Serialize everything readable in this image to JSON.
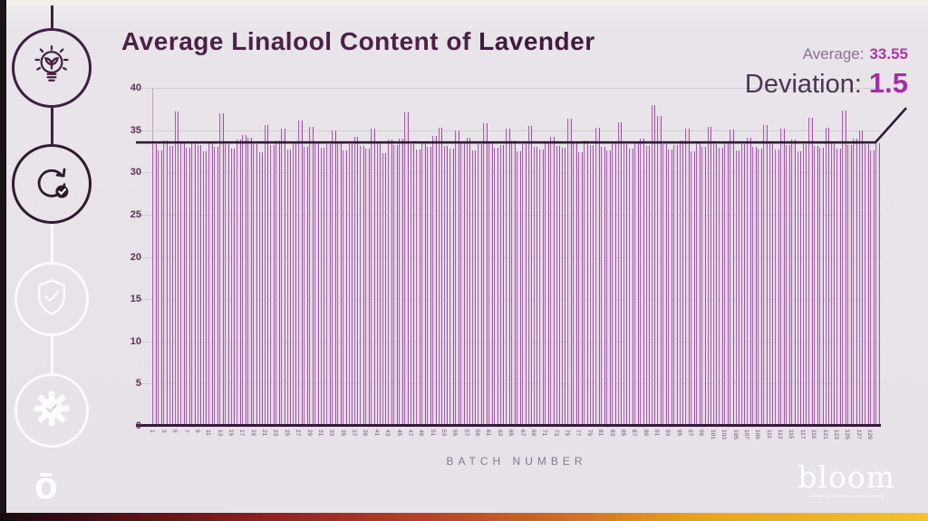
{
  "slide": {
    "title_regular": "Average Linalool Content of ",
    "title_bold": "Lavender",
    "average_label": "Average:",
    "average_value": "33.55",
    "deviation_label": "Deviation:",
    "deviation_value": "1.5"
  },
  "sidebar": {
    "icons": [
      "lightbulb-plant",
      "refresh-check",
      "shield-check",
      "gear-check"
    ],
    "logo_mark": "ō"
  },
  "footer": {
    "brand": "bloom"
  },
  "colors": {
    "background": "#e8e4ea",
    "title": "#4c2145",
    "accent_magenta": "#a32ea3",
    "bar_fill": "#ecd2ec",
    "bar_edge": "#a066a6",
    "average_line": "#2f1b33",
    "axis_dark": "#34193a",
    "bottom_strip": [
      "#140b0e",
      "#8f1f1f",
      "#cf6a22",
      "#f2c12d"
    ]
  },
  "chart_data": {
    "type": "bar",
    "title": "Average Linalool Content of Lavender",
    "xlabel": "BATCH NUMBER",
    "ylabel": "",
    "ylim": [
      0,
      40
    ],
    "yticks": [
      0,
      5,
      10,
      15,
      20,
      25,
      30,
      35,
      40
    ],
    "grid": "horizontal-faint",
    "average": 33.55,
    "deviation": 1.5,
    "x_tick_labels": [
      "1",
      "3",
      "5",
      "7",
      "9",
      "11",
      "13",
      "15",
      "17",
      "19",
      "21",
      "23",
      "25",
      "27",
      "29",
      "31",
      "33",
      "35",
      "37",
      "39",
      "41",
      "43",
      "45",
      "47",
      "49",
      "51",
      "53",
      "55",
      "57",
      "59",
      "61",
      "63",
      "65",
      "67",
      "69",
      "71",
      "73",
      "75",
      "77",
      "79",
      "81",
      "83",
      "85",
      "87",
      "89",
      "91",
      "93",
      "95",
      "97",
      "99",
      "101",
      "103",
      "105",
      "107",
      "109",
      "111",
      "113",
      "115",
      "117",
      "119",
      "121",
      "123",
      "125",
      "127",
      "129"
    ],
    "values": [
      33.4,
      32.6,
      33.8,
      33.1,
      37.2,
      33.5,
      32.9,
      33.7,
      33.2,
      32.5,
      33.6,
      33.0,
      37.0,
      33.4,
      32.8,
      33.9,
      34.4,
      34.1,
      33.3,
      32.4,
      35.6,
      33.2,
      33.8,
      35.2,
      32.7,
      33.5,
      36.1,
      33.0,
      35.4,
      33.6,
      32.9,
      33.3,
      35.0,
      33.7,
      32.6,
      33.4,
      34.2,
      33.1,
      32.8,
      35.2,
      33.5,
      32.3,
      33.9,
      33.2,
      34.0,
      37.1,
      33.4,
      32.7,
      33.6,
      33.0,
      34.3,
      35.3,
      33.1,
      32.8,
      35.0,
      33.5,
      34.1,
      32.6,
      33.3,
      35.8,
      33.7,
      32.9,
      33.2,
      35.2,
      33.8,
      32.5,
      33.4,
      35.5,
      33.0,
      32.7,
      33.6,
      34.2,
      33.1,
      32.9,
      36.4,
      33.5,
      32.4,
      33.8,
      33.2,
      35.3,
      33.0,
      32.6,
      33.7,
      35.9,
      33.3,
      32.8,
      33.5,
      34.0,
      33.1,
      38.0,
      36.7,
      33.4,
      32.7,
      33.2,
      33.8,
      35.2,
      32.5,
      33.6,
      33.0,
      35.4,
      33.3,
      32.9,
      33.7,
      35.1,
      32.6,
      33.4,
      34.1,
      33.0,
      32.8,
      35.6,
      33.5,
      32.7,
      35.2,
      33.2,
      33.9,
      32.5,
      33.4,
      36.5,
      33.1,
      32.9,
      35.3,
      33.6,
      32.8,
      37.3,
      33.2,
      34.0,
      35.0,
      33.4,
      32.6,
      33.5
    ]
  }
}
